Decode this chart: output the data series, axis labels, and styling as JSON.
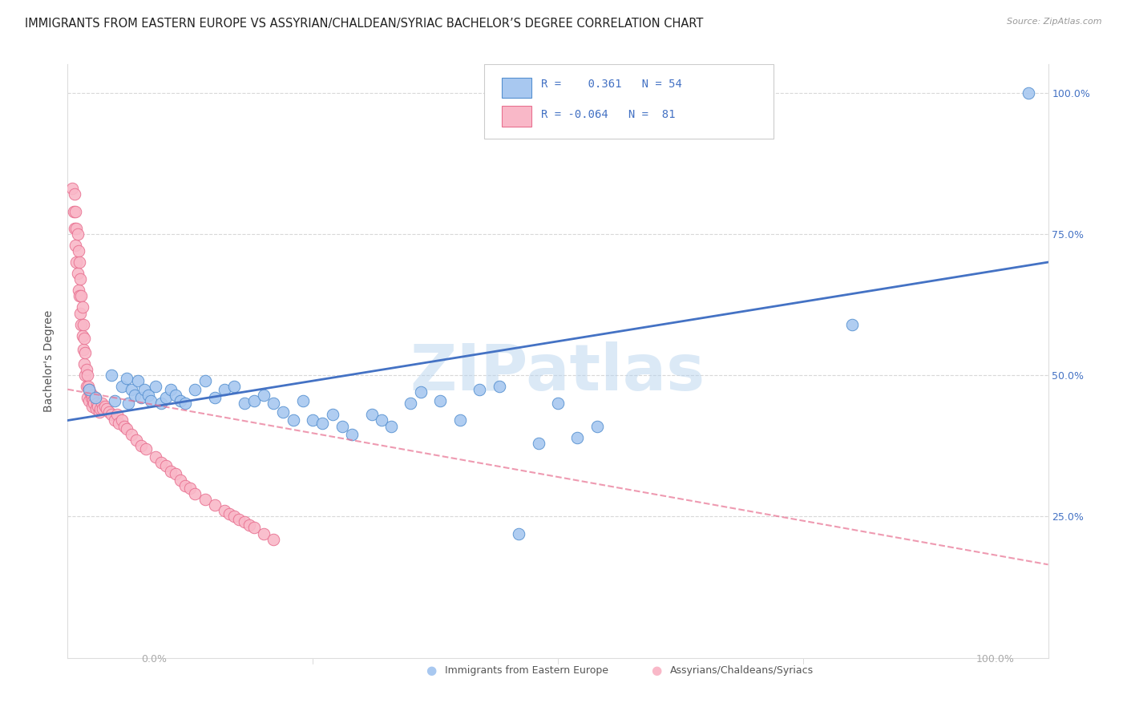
{
  "title": "IMMIGRANTS FROM EASTERN EUROPE VS ASSYRIAN/CHALDEAN/SYRIAC BACHELOR’S DEGREE CORRELATION CHART",
  "source": "Source: ZipAtlas.com",
  "ylabel": "Bachelor's Degree",
  "watermark": "ZIPatlas",
  "blue_R": "0.361",
  "blue_N": "54",
  "pink_R": "-0.064",
  "pink_N": "81",
  "right_yticklabels": [
    "25.0%",
    "50.0%",
    "75.0%",
    "100.0%"
  ],
  "right_yticks": [
    0.25,
    0.5,
    0.75,
    1.0
  ],
  "blue_fill": "#a8c8f0",
  "pink_fill": "#f9b8c8",
  "blue_edge": "#5590d0",
  "pink_edge": "#e87090",
  "blue_line": "#4472C4",
  "pink_line": "#e87090",
  "grid_color": "#d8d8d8",
  "bg_color": "#ffffff",
  "blue_scatter_x": [
    0.022,
    0.028,
    0.045,
    0.048,
    0.055,
    0.06,
    0.062,
    0.065,
    0.068,
    0.072,
    0.075,
    0.078,
    0.082,
    0.085,
    0.09,
    0.095,
    0.1,
    0.105,
    0.11,
    0.115,
    0.12,
    0.13,
    0.14,
    0.15,
    0.16,
    0.17,
    0.18,
    0.19,
    0.2,
    0.21,
    0.22,
    0.23,
    0.24,
    0.25,
    0.26,
    0.27,
    0.28,
    0.29,
    0.31,
    0.32,
    0.33,
    0.35,
    0.36,
    0.38,
    0.4,
    0.42,
    0.44,
    0.46,
    0.48,
    0.5,
    0.52,
    0.54,
    0.8,
    0.98
  ],
  "blue_scatter_y": [
    0.475,
    0.46,
    0.5,
    0.455,
    0.48,
    0.495,
    0.45,
    0.475,
    0.465,
    0.49,
    0.46,
    0.475,
    0.465,
    0.455,
    0.48,
    0.45,
    0.46,
    0.475,
    0.465,
    0.455,
    0.45,
    0.475,
    0.49,
    0.46,
    0.475,
    0.48,
    0.45,
    0.455,
    0.465,
    0.45,
    0.435,
    0.42,
    0.455,
    0.42,
    0.415,
    0.43,
    0.41,
    0.395,
    0.43,
    0.42,
    0.41,
    0.45,
    0.47,
    0.455,
    0.42,
    0.475,
    0.48,
    0.22,
    0.38,
    0.45,
    0.39,
    0.41,
    0.59,
    1.0
  ],
  "pink_scatter_x": [
    0.005,
    0.006,
    0.007,
    0.007,
    0.008,
    0.008,
    0.009,
    0.009,
    0.01,
    0.01,
    0.011,
    0.011,
    0.012,
    0.012,
    0.013,
    0.013,
    0.014,
    0.014,
    0.015,
    0.015,
    0.016,
    0.016,
    0.017,
    0.017,
    0.018,
    0.018,
    0.019,
    0.019,
    0.02,
    0.02,
    0.021,
    0.022,
    0.022,
    0.023,
    0.024,
    0.025,
    0.025,
    0.026,
    0.027,
    0.028,
    0.029,
    0.03,
    0.031,
    0.032,
    0.033,
    0.035,
    0.036,
    0.038,
    0.04,
    0.042,
    0.045,
    0.048,
    0.05,
    0.052,
    0.055,
    0.058,
    0.06,
    0.065,
    0.07,
    0.075,
    0.08,
    0.09,
    0.095,
    0.1,
    0.105,
    0.11,
    0.115,
    0.12,
    0.125,
    0.13,
    0.14,
    0.15,
    0.16,
    0.165,
    0.17,
    0.175,
    0.18,
    0.185,
    0.19,
    0.2,
    0.21
  ],
  "pink_scatter_y": [
    0.83,
    0.79,
    0.82,
    0.76,
    0.79,
    0.73,
    0.76,
    0.7,
    0.75,
    0.68,
    0.72,
    0.65,
    0.7,
    0.64,
    0.67,
    0.61,
    0.64,
    0.59,
    0.62,
    0.57,
    0.59,
    0.545,
    0.565,
    0.52,
    0.54,
    0.5,
    0.51,
    0.48,
    0.5,
    0.46,
    0.48,
    0.475,
    0.455,
    0.47,
    0.46,
    0.465,
    0.445,
    0.455,
    0.45,
    0.46,
    0.44,
    0.45,
    0.445,
    0.435,
    0.44,
    0.45,
    0.44,
    0.445,
    0.44,
    0.435,
    0.43,
    0.42,
    0.43,
    0.415,
    0.42,
    0.41,
    0.405,
    0.395,
    0.385,
    0.375,
    0.37,
    0.355,
    0.345,
    0.34,
    0.33,
    0.325,
    0.315,
    0.305,
    0.3,
    0.29,
    0.28,
    0.27,
    0.26,
    0.255,
    0.25,
    0.245,
    0.24,
    0.235,
    0.23,
    0.22,
    0.21
  ],
  "blue_trend_x": [
    0.0,
    1.0
  ],
  "blue_trend_y": [
    0.42,
    0.7
  ],
  "pink_trend_x": [
    0.0,
    1.0
  ],
  "pink_trend_y": [
    0.475,
    0.165
  ],
  "xlim": [
    0.0,
    1.0
  ],
  "ylim": [
    0.0,
    1.05
  ],
  "title_fontsize": 10.5,
  "label_fontsize": 9,
  "legend_label1": "Immigrants from Eastern Europe",
  "legend_label2": "Assyrians/Chaldeans/Syriacs"
}
